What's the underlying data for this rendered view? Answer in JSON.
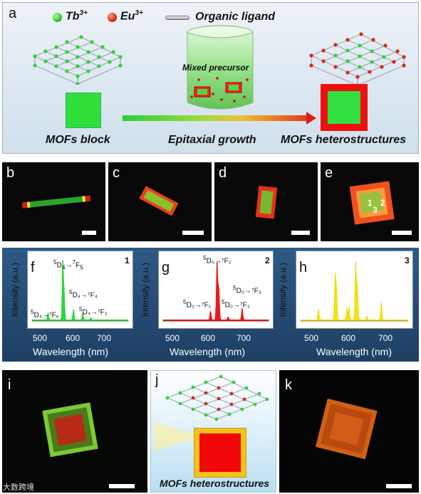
{
  "panel_a": {
    "label": "a",
    "legend": {
      "tb_label": "Tb",
      "tb_sup": "3+",
      "eu_label": "Eu",
      "eu_sup": "3+",
      "ligand_label": "Organic ligand"
    },
    "mixed_precursor": "Mixed precursor",
    "captions": {
      "left": "MOFs block",
      "middle": "Epitaxial growth",
      "right": "MOFs heterostructures"
    }
  },
  "micro_panels": {
    "b": "b",
    "c": "c",
    "d": "d",
    "e": "e",
    "e_points": [
      "1",
      "2",
      "3"
    ],
    "i": "i",
    "k": "k"
  },
  "spectra": {
    "ylabel": "Intensity (a.u.)",
    "xlabel": "Wavelength (nm)",
    "f": {
      "label": "f",
      "point": "1",
      "xticks": [
        "500",
        "600",
        "700"
      ],
      "annotations": {
        "main_pre": "5",
        "main_mid": "D",
        "main_sub": "4",
        "main_arrow": "→",
        "main_sup2": "7",
        "main_end": "F",
        "main_end_sub": "5",
        "a2": "D₄→⁷F₄",
        "a2_pre": "5",
        "a3": "D₄→⁷F₆",
        "a3_pre": "5",
        "a4": "D₄→⁷F₃",
        "a4_pre": "5"
      }
    },
    "g": {
      "label": "g",
      "point": "2",
      "xticks": [
        "500",
        "600",
        "700"
      ],
      "annotations": {
        "a1": "D₀→⁷F₂",
        "a1_pre": "5",
        "a2": "D₀→⁷F₄",
        "a2_pre": "5",
        "a3": "D₀→⁷F₁",
        "a3_pre": "5",
        "a4": "D₀→⁷F₃",
        "a4_pre": "5"
      }
    },
    "h": {
      "label": "h",
      "point": "3",
      "xticks": [
        "500",
        "600",
        "700"
      ]
    }
  },
  "chart_data": [
    {
      "type": "line",
      "panel": "f",
      "xlabel": "Wavelength (nm)",
      "ylabel": "Intensity (a.u.)",
      "xlim": [
        430,
        790
      ],
      "series": [
        {
          "color": "#2fd43a",
          "peaks": [
            [
              490,
              0.12
            ],
            [
              545,
              1.0
            ],
            [
              550,
              0.45
            ],
            [
              585,
              0.18
            ],
            [
              620,
              0.12
            ],
            [
              650,
              0.04
            ]
          ]
        }
      ]
    },
    {
      "type": "line",
      "panel": "g",
      "xlabel": "Wavelength (nm)",
      "ylabel": "Intensity (a.u.)",
      "xlim": [
        430,
        790
      ],
      "series": [
        {
          "color": "#e81a1a",
          "peaks": [
            [
              592,
              0.15
            ],
            [
              614,
              1.0
            ],
            [
              620,
              0.55
            ],
            [
              652,
              0.05
            ],
            [
              700,
              0.2
            ]
          ]
        }
      ]
    },
    {
      "type": "line",
      "panel": "h",
      "xlabel": "Wavelength (nm)",
      "ylabel": "Intensity (a.u.)",
      "xlim": [
        430,
        790
      ],
      "series": [
        {
          "color": "#f0e020",
          "peaks": [
            [
              490,
              0.18
            ],
            [
              545,
              0.75
            ],
            [
              550,
              0.55
            ],
            [
              585,
              0.2
            ],
            [
              592,
              0.22
            ],
            [
              614,
              1.0
            ],
            [
              620,
              0.6
            ],
            [
              652,
              0.06
            ],
            [
              700,
              0.3
            ]
          ]
        }
      ]
    }
  ],
  "panel_j": {
    "label": "j",
    "caption": "MOFs heterostructures"
  },
  "watermark": "大数跨境",
  "colors": {
    "tb_green": "#2fe03a",
    "eu_red": "#e0241e",
    "h_yellow": "#f0e020"
  }
}
